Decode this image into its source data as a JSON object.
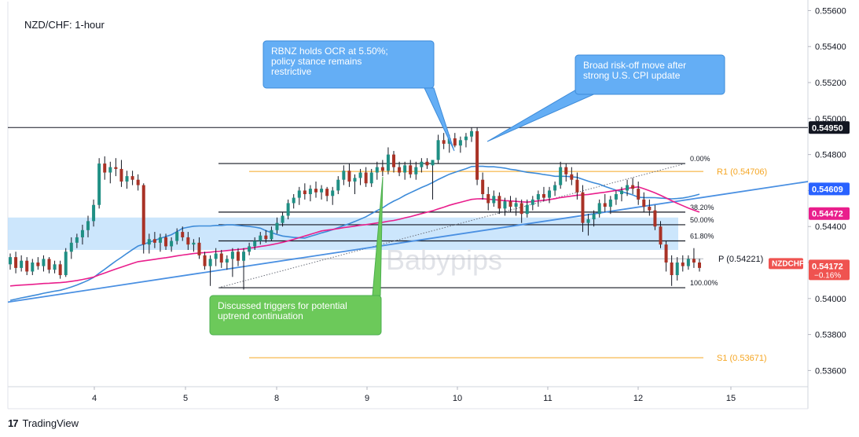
{
  "chart_data": {
    "type": "candlestick",
    "title": "NZD/CHF: 1-hour",
    "watermark": "Babypips",
    "x_ticks": [
      "4",
      "5",
      "8",
      "9",
      "10",
      "11",
      "12",
      "15"
    ],
    "y_ticks": [
      "0.55600",
      "0.55400",
      "0.55200",
      "0.55000",
      "0.54800",
      "0.54600",
      "0.54400",
      "0.54200",
      "0.54000",
      "0.53800",
      "0.53600"
    ],
    "ylim": [
      0.5351,
      0.5565
    ],
    "levels": [
      {
        "label": "R1 (0.54706)",
        "value": 0.54706,
        "color": "#f5a623"
      },
      {
        "label": "S1 (0.53671)",
        "value": 0.53671,
        "color": "#f5a623"
      },
      {
        "label": "P (0.54221)",
        "value": 0.54221,
        "color": "#9598a1"
      }
    ],
    "fib_levels": [
      {
        "label": "0.00%",
        "value": 0.5475
      },
      {
        "label": "38.20%",
        "value": 0.5448
      },
      {
        "label": "50.00%",
        "value": 0.5441
      },
      {
        "label": "61.80%",
        "value": 0.5432
      },
      {
        "label": "100.00%",
        "value": 0.5406
      }
    ],
    "horizontal_line": {
      "value": 0.5495,
      "label": "0.54950"
    },
    "price_labels": [
      {
        "text": "0.54609",
        "value": 0.54609,
        "color": "#2962ff"
      },
      {
        "text": "0.54472",
        "value": 0.54472,
        "color": "#e91e8c"
      }
    ],
    "current": {
      "symbol": "NZDCHF",
      "price": "0.54172",
      "change": "−0.16%",
      "value": 0.54172,
      "color": "#ef5350"
    },
    "candles": [
      [
        0.5419,
        0.5425,
        0.5416,
        0.5423
      ],
      [
        0.5423,
        0.5426,
        0.5414,
        0.5417
      ],
      [
        0.5417,
        0.5424,
        0.5415,
        0.5421
      ],
      [
        0.5421,
        0.5423,
        0.5413,
        0.5415
      ],
      [
        0.5415,
        0.5422,
        0.5413,
        0.542
      ],
      [
        0.542,
        0.5423,
        0.5416,
        0.5418
      ],
      [
        0.5418,
        0.5424,
        0.5415,
        0.5422
      ],
      [
        0.5422,
        0.5423,
        0.5414,
        0.5416
      ],
      [
        0.5416,
        0.5421,
        0.5414,
        0.5419
      ],
      [
        0.5419,
        0.5421,
        0.5411,
        0.5413
      ],
      [
        0.5413,
        0.5428,
        0.5412,
        0.5426
      ],
      [
        0.5426,
        0.5434,
        0.5422,
        0.5431
      ],
      [
        0.5431,
        0.5436,
        0.5428,
        0.5434
      ],
      [
        0.5434,
        0.5441,
        0.543,
        0.5438
      ],
      [
        0.5438,
        0.5446,
        0.5434,
        0.5443
      ],
      [
        0.5443,
        0.5455,
        0.544,
        0.5452
      ],
      [
        0.5452,
        0.5478,
        0.545,
        0.5475
      ],
      [
        0.5475,
        0.5479,
        0.5466,
        0.547
      ],
      [
        0.547,
        0.5476,
        0.5464,
        0.5473
      ],
      [
        0.5473,
        0.5478,
        0.5468,
        0.5472
      ],
      [
        0.5472,
        0.5477,
        0.5462,
        0.5465
      ],
      [
        0.5465,
        0.5471,
        0.5461,
        0.5468
      ],
      [
        0.5468,
        0.5471,
        0.5463,
        0.5466
      ],
      [
        0.5466,
        0.5469,
        0.546,
        0.5463
      ],
      [
        0.5463,
        0.5464,
        0.5425,
        0.543
      ],
      [
        0.543,
        0.5436,
        0.5425,
        0.5433
      ],
      [
        0.5433,
        0.5437,
        0.5428,
        0.5431
      ],
      [
        0.5431,
        0.5436,
        0.5426,
        0.5434
      ],
      [
        0.5434,
        0.5436,
        0.5427,
        0.5429
      ],
      [
        0.5429,
        0.5434,
        0.5426,
        0.5432
      ],
      [
        0.5432,
        0.5439,
        0.543,
        0.5437
      ],
      [
        0.5437,
        0.544,
        0.5432,
        0.5434
      ],
      [
        0.5434,
        0.5437,
        0.5427,
        0.543
      ],
      [
        0.543,
        0.5433,
        0.5426,
        0.5431
      ],
      [
        0.5431,
        0.5434,
        0.5422,
        0.5424
      ],
      [
        0.5424,
        0.5426,
        0.5416,
        0.5418
      ],
      [
        0.5418,
        0.5424,
        0.5407,
        0.5422
      ],
      [
        0.5422,
        0.5428,
        0.5418,
        0.5425
      ],
      [
        0.5425,
        0.5427,
        0.5417,
        0.542
      ],
      [
        0.542,
        0.5424,
        0.5416,
        0.5422
      ],
      [
        0.5422,
        0.5428,
        0.5412,
        0.5426
      ],
      [
        0.5426,
        0.5428,
        0.5418,
        0.5421
      ],
      [
        0.5421,
        0.5428,
        0.5405,
        0.5426
      ],
      [
        0.5426,
        0.5431,
        0.5424,
        0.5429
      ],
      [
        0.5429,
        0.5434,
        0.5427,
        0.5432
      ],
      [
        0.5432,
        0.5437,
        0.543,
        0.5435
      ],
      [
        0.5435,
        0.5438,
        0.5431,
        0.5433
      ],
      [
        0.5433,
        0.544,
        0.5432,
        0.5438
      ],
      [
        0.5438,
        0.5445,
        0.5436,
        0.5442
      ],
      [
        0.5442,
        0.5448,
        0.544,
        0.5446
      ],
      [
        0.5446,
        0.5455,
        0.5444,
        0.5453
      ],
      [
        0.5453,
        0.5458,
        0.545,
        0.5456
      ],
      [
        0.5456,
        0.5462,
        0.5452,
        0.546
      ],
      [
        0.546,
        0.5464,
        0.5455,
        0.5458
      ],
      [
        0.5458,
        0.5463,
        0.5454,
        0.5461
      ],
      [
        0.5461,
        0.5465,
        0.5456,
        0.5459
      ],
      [
        0.5459,
        0.5463,
        0.5455,
        0.5461
      ],
      [
        0.5461,
        0.5462,
        0.5454,
        0.5457
      ],
      [
        0.5457,
        0.5462,
        0.5452,
        0.546
      ],
      [
        0.546,
        0.5468,
        0.5458,
        0.5466
      ],
      [
        0.5466,
        0.5474,
        0.5463,
        0.5471
      ],
      [
        0.5471,
        0.5475,
        0.5462,
        0.5465
      ],
      [
        0.5465,
        0.5469,
        0.5458,
        0.5467
      ],
      [
        0.5467,
        0.5472,
        0.5463,
        0.547
      ],
      [
        0.547,
        0.5473,
        0.5462,
        0.5464
      ],
      [
        0.5464,
        0.5472,
        0.5462,
        0.547
      ],
      [
        0.547,
        0.5476,
        0.5466,
        0.5473
      ],
      [
        0.5473,
        0.5477,
        0.5468,
        0.5471
      ],
      [
        0.5471,
        0.5484,
        0.5469,
        0.548
      ],
      [
        0.548,
        0.5482,
        0.547,
        0.5473
      ],
      [
        0.5473,
        0.5476,
        0.5468,
        0.547
      ],
      [
        0.547,
        0.5476,
        0.5466,
        0.5474
      ],
      [
        0.5474,
        0.5477,
        0.5467,
        0.5469
      ],
      [
        0.5469,
        0.5476,
        0.5466,
        0.5473
      ],
      [
        0.5473,
        0.5478,
        0.547,
        0.5476
      ],
      [
        0.5476,
        0.5478,
        0.5472,
        0.5474
      ],
      [
        0.5474,
        0.5476,
        0.5455,
        0.5477
      ],
      [
        0.5477,
        0.5491,
        0.5475,
        0.5488
      ],
      [
        0.5488,
        0.5492,
        0.5483,
        0.5486
      ],
      [
        0.5486,
        0.5491,
        0.5481,
        0.5489
      ],
      [
        0.5489,
        0.5492,
        0.5484,
        0.5485
      ],
      [
        0.5485,
        0.549,
        0.5481,
        0.5488
      ],
      [
        0.5488,
        0.5492,
        0.5484,
        0.549
      ],
      [
        0.549,
        0.5495,
        0.5487,
        0.5493
      ],
      [
        0.5493,
        0.5495,
        0.5463,
        0.5466
      ],
      [
        0.5466,
        0.547,
        0.5455,
        0.5458
      ],
      [
        0.5458,
        0.5462,
        0.5449,
        0.5453
      ],
      [
        0.5453,
        0.546,
        0.5451,
        0.5457
      ],
      [
        0.5457,
        0.5459,
        0.5447,
        0.545
      ],
      [
        0.545,
        0.5456,
        0.5446,
        0.5454
      ],
      [
        0.5454,
        0.5457,
        0.5448,
        0.5451
      ],
      [
        0.5451,
        0.5456,
        0.5446,
        0.5453
      ],
      [
        0.5453,
        0.5455,
        0.5442,
        0.5447
      ],
      [
        0.5447,
        0.5455,
        0.5445,
        0.5452
      ],
      [
        0.5452,
        0.5457,
        0.5449,
        0.5455
      ],
      [
        0.5455,
        0.546,
        0.5451,
        0.5458
      ],
      [
        0.5458,
        0.5462,
        0.5454,
        0.5456
      ],
      [
        0.5456,
        0.5462,
        0.5453,
        0.546
      ],
      [
        0.546,
        0.5465,
        0.5457,
        0.5463
      ],
      [
        0.5463,
        0.5476,
        0.5461,
        0.5473
      ],
      [
        0.5473,
        0.5475,
        0.5465,
        0.5469
      ],
      [
        0.5469,
        0.5473,
        0.5463,
        0.5466
      ],
      [
        0.5466,
        0.547,
        0.5455,
        0.5459
      ],
      [
        0.5459,
        0.5463,
        0.5437,
        0.5442
      ],
      [
        0.5442,
        0.5447,
        0.5435,
        0.5444
      ],
      [
        0.5444,
        0.5449,
        0.544,
        0.5447
      ],
      [
        0.5447,
        0.5455,
        0.5445,
        0.5453
      ],
      [
        0.5453,
        0.5458,
        0.5448,
        0.5451
      ],
      [
        0.5451,
        0.5457,
        0.5447,
        0.5455
      ],
      [
        0.5455,
        0.546,
        0.5452,
        0.5458
      ],
      [
        0.5458,
        0.5462,
        0.5454,
        0.546
      ],
      [
        0.546,
        0.5466,
        0.5457,
        0.5463
      ],
      [
        0.5463,
        0.5467,
        0.5458,
        0.5461
      ],
      [
        0.5461,
        0.5465,
        0.5452,
        0.5455
      ],
      [
        0.5455,
        0.5459,
        0.5448,
        0.5451
      ],
      [
        0.5451,
        0.5455,
        0.5446,
        0.5449
      ],
      [
        0.5449,
        0.5452,
        0.5438,
        0.544
      ],
      [
        0.544,
        0.5443,
        0.5428,
        0.543
      ],
      [
        0.543,
        0.5432,
        0.5415,
        0.542
      ],
      [
        0.542,
        0.5424,
        0.5407,
        0.5413
      ],
      [
        0.5413,
        0.5423,
        0.541,
        0.542
      ],
      [
        0.542,
        0.5424,
        0.5415,
        0.5418
      ],
      [
        0.5418,
        0.5424,
        0.5416,
        0.5422
      ],
      [
        0.5422,
        0.5428,
        0.5417,
        0.542
      ],
      [
        0.542,
        0.5422,
        0.5415,
        0.5417
      ]
    ],
    "annotations": [
      {
        "text": "RBNZ holds OCR at 5.50%; policy stance remains restrictive",
        "lines": [
          "RBNZ holds OCR at 5.50%;",
          "policy stance remains",
          "restrictive"
        ],
        "color": "#64aef5"
      },
      {
        "text": "Broad risk-off move after strong U.S. CPI update",
        "lines": [
          "Broad risk-off move after",
          "strong U.S. CPI update"
        ],
        "color": "#64aef5"
      },
      {
        "text": "Discussed triggers for potential uptrend continuation",
        "lines": [
          "Discussed triggers for potential",
          "uptrend continuation"
        ],
        "color": "#6cc95a"
      }
    ],
    "zone": {
      "from": 0.5427,
      "to": 0.5445
    },
    "grid": true
  },
  "footer": {
    "brand": "TradingView"
  }
}
